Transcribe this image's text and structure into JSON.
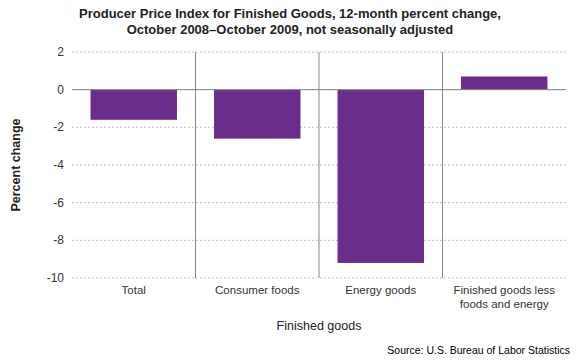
{
  "chart_data": {
    "type": "bar",
    "title": "Producer Price Index for Finished Goods, 12-month percent change,\nOctober 2008–October 2009, not seasonally adjusted",
    "categories": [
      "Total",
      "Consumer foods",
      "Energy goods",
      "Finished goods less\nfoods and energy"
    ],
    "values": [
      -1.6,
      -2.6,
      -9.2,
      0.7
    ],
    "color": "#6b2d8b",
    "xlabel": "Finished goods",
    "ylabel": "Percent change",
    "ylim": [
      -10,
      2
    ],
    "yticks": [
      -10,
      -8,
      -6,
      -4,
      -2,
      0,
      2
    ],
    "grid": true,
    "source": "Source: U.S. Bureau of Labor Statistics"
  }
}
